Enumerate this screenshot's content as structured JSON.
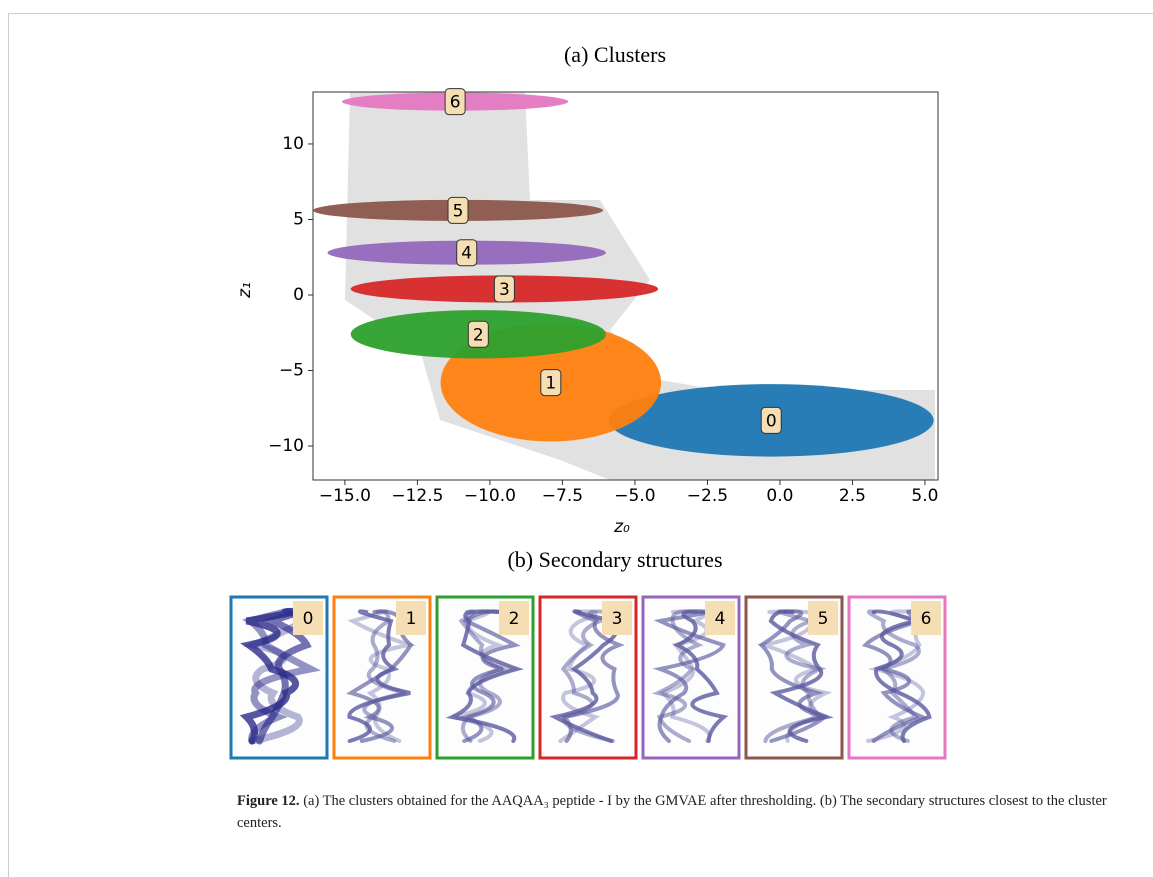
{
  "chart_data": {
    "type": "scatter",
    "title": "(a) Clusters",
    "xlabel": "z₀",
    "ylabel": "z₁",
    "xlim": [
      -16.1,
      5.45
    ],
    "ylim": [
      -12.25,
      13.44
    ],
    "xticks": [
      {
        "value": -15,
        "label": "−15.0"
      },
      {
        "value": -12.5,
        "label": "−12.5"
      },
      {
        "value": -10,
        "label": "−10.0"
      },
      {
        "value": -7.5,
        "label": "−7.5"
      },
      {
        "value": -5,
        "label": "−5.0"
      },
      {
        "value": -2.5,
        "label": "−2.5"
      },
      {
        "value": 0,
        "label": "0.0"
      },
      2.5,
      {
        "value": 5,
        "label": "5.0"
      }
    ],
    "yticks": [
      {
        "value": -10,
        "label": "−10"
      },
      {
        "value": -5,
        "label": "−5"
      },
      0,
      5,
      10
    ],
    "clusters": [
      {
        "label": "0",
        "color": "#1f77b4",
        "x": -0.3,
        "y": -8.3,
        "rx": 5.6,
        "ry": 2.4
      },
      {
        "label": "1",
        "color": "#ff7f0e",
        "x": -7.9,
        "y": -5.8,
        "rx": 3.8,
        "ry": 3.9
      },
      {
        "label": "2",
        "color": "#2ca02c",
        "x": -10.4,
        "y": -2.6,
        "rx": 4.4,
        "ry": 1.6
      },
      {
        "label": "3",
        "color": "#d62728",
        "x": -9.5,
        "y": 0.4,
        "rx": 5.3,
        "ry": 0.9
      },
      {
        "label": "4",
        "color": "#9467bd",
        "x": -10.8,
        "y": 2.8,
        "rx": 4.8,
        "ry": 0.8
      },
      {
        "label": "5",
        "color": "#8c564b",
        "x": -11.1,
        "y": 5.6,
        "rx": 5.0,
        "ry": 0.7
      },
      {
        "label": "6",
        "color": "#e377c2",
        "x": -11.2,
        "y": 12.8,
        "rx": 3.9,
        "ry": 0.6
      }
    ],
    "subtitle": "(b) Secondary structures"
  },
  "caption": {
    "label": "Figure 12.",
    "text": "(a) The clusters obtained for the AAQAA₃ peptide - I by the GMVAE after thresholding. (b) The secondary structures closest to the cluster centers."
  }
}
